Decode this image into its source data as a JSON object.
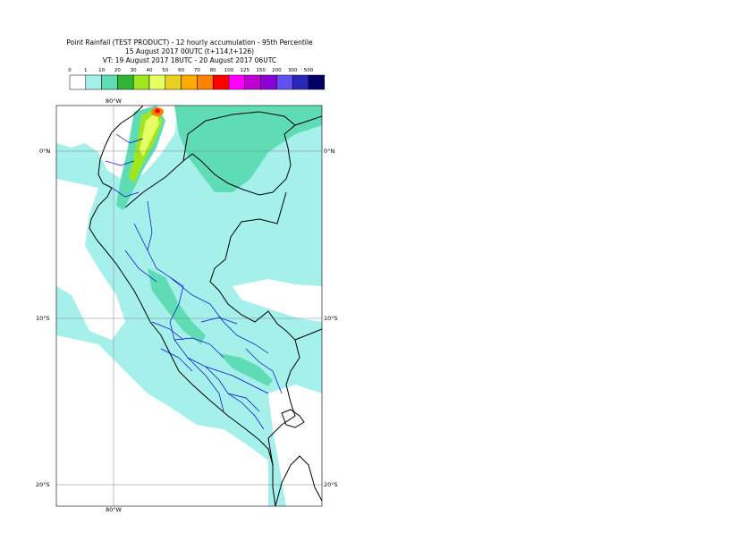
{
  "header": {
    "line1": "Point Rainfall (TEST PRODUCT) - 12 hourly accumulation - 95th Percentile",
    "line2": "15 August 2017 00UTC (t+114,t+126)",
    "line3": "VT: 19 August 2017 18UTC - 20 August 2017 06UTC"
  },
  "legend": {
    "thresholds": [
      "0",
      "1",
      "10",
      "20",
      "30",
      "40",
      "50",
      "60",
      "70",
      "80",
      "100",
      "125",
      "150",
      "200",
      "300",
      "500"
    ],
    "colors": [
      "#ffffff",
      "#a6f0ec",
      "#5fdcb4",
      "#2fb437",
      "#a0e61e",
      "#e6ff64",
      "#e6d21e",
      "#ffaa00",
      "#ff8200",
      "#ff0000",
      "#ff00ff",
      "#be00d2",
      "#8c00d2",
      "#6450f0",
      "#2828b4",
      "#000064"
    ]
  },
  "map": {
    "lat_labels": {
      "eq": "0°N",
      "s10": "10°S",
      "s20": "20°S"
    },
    "lon_label": "80°W",
    "colors": {
      "background": "#a6f0ec",
      "dry": "#ffffff",
      "moderate": "#5fdcb4",
      "heavy_green": "#a0e61e",
      "heavy_yellow": "#e6ff64",
      "peak_orange": "#ff8200",
      "peak_red": "#ff0000",
      "coast": "#000000",
      "borders": "#0000cc",
      "grid": "#808080"
    }
  }
}
